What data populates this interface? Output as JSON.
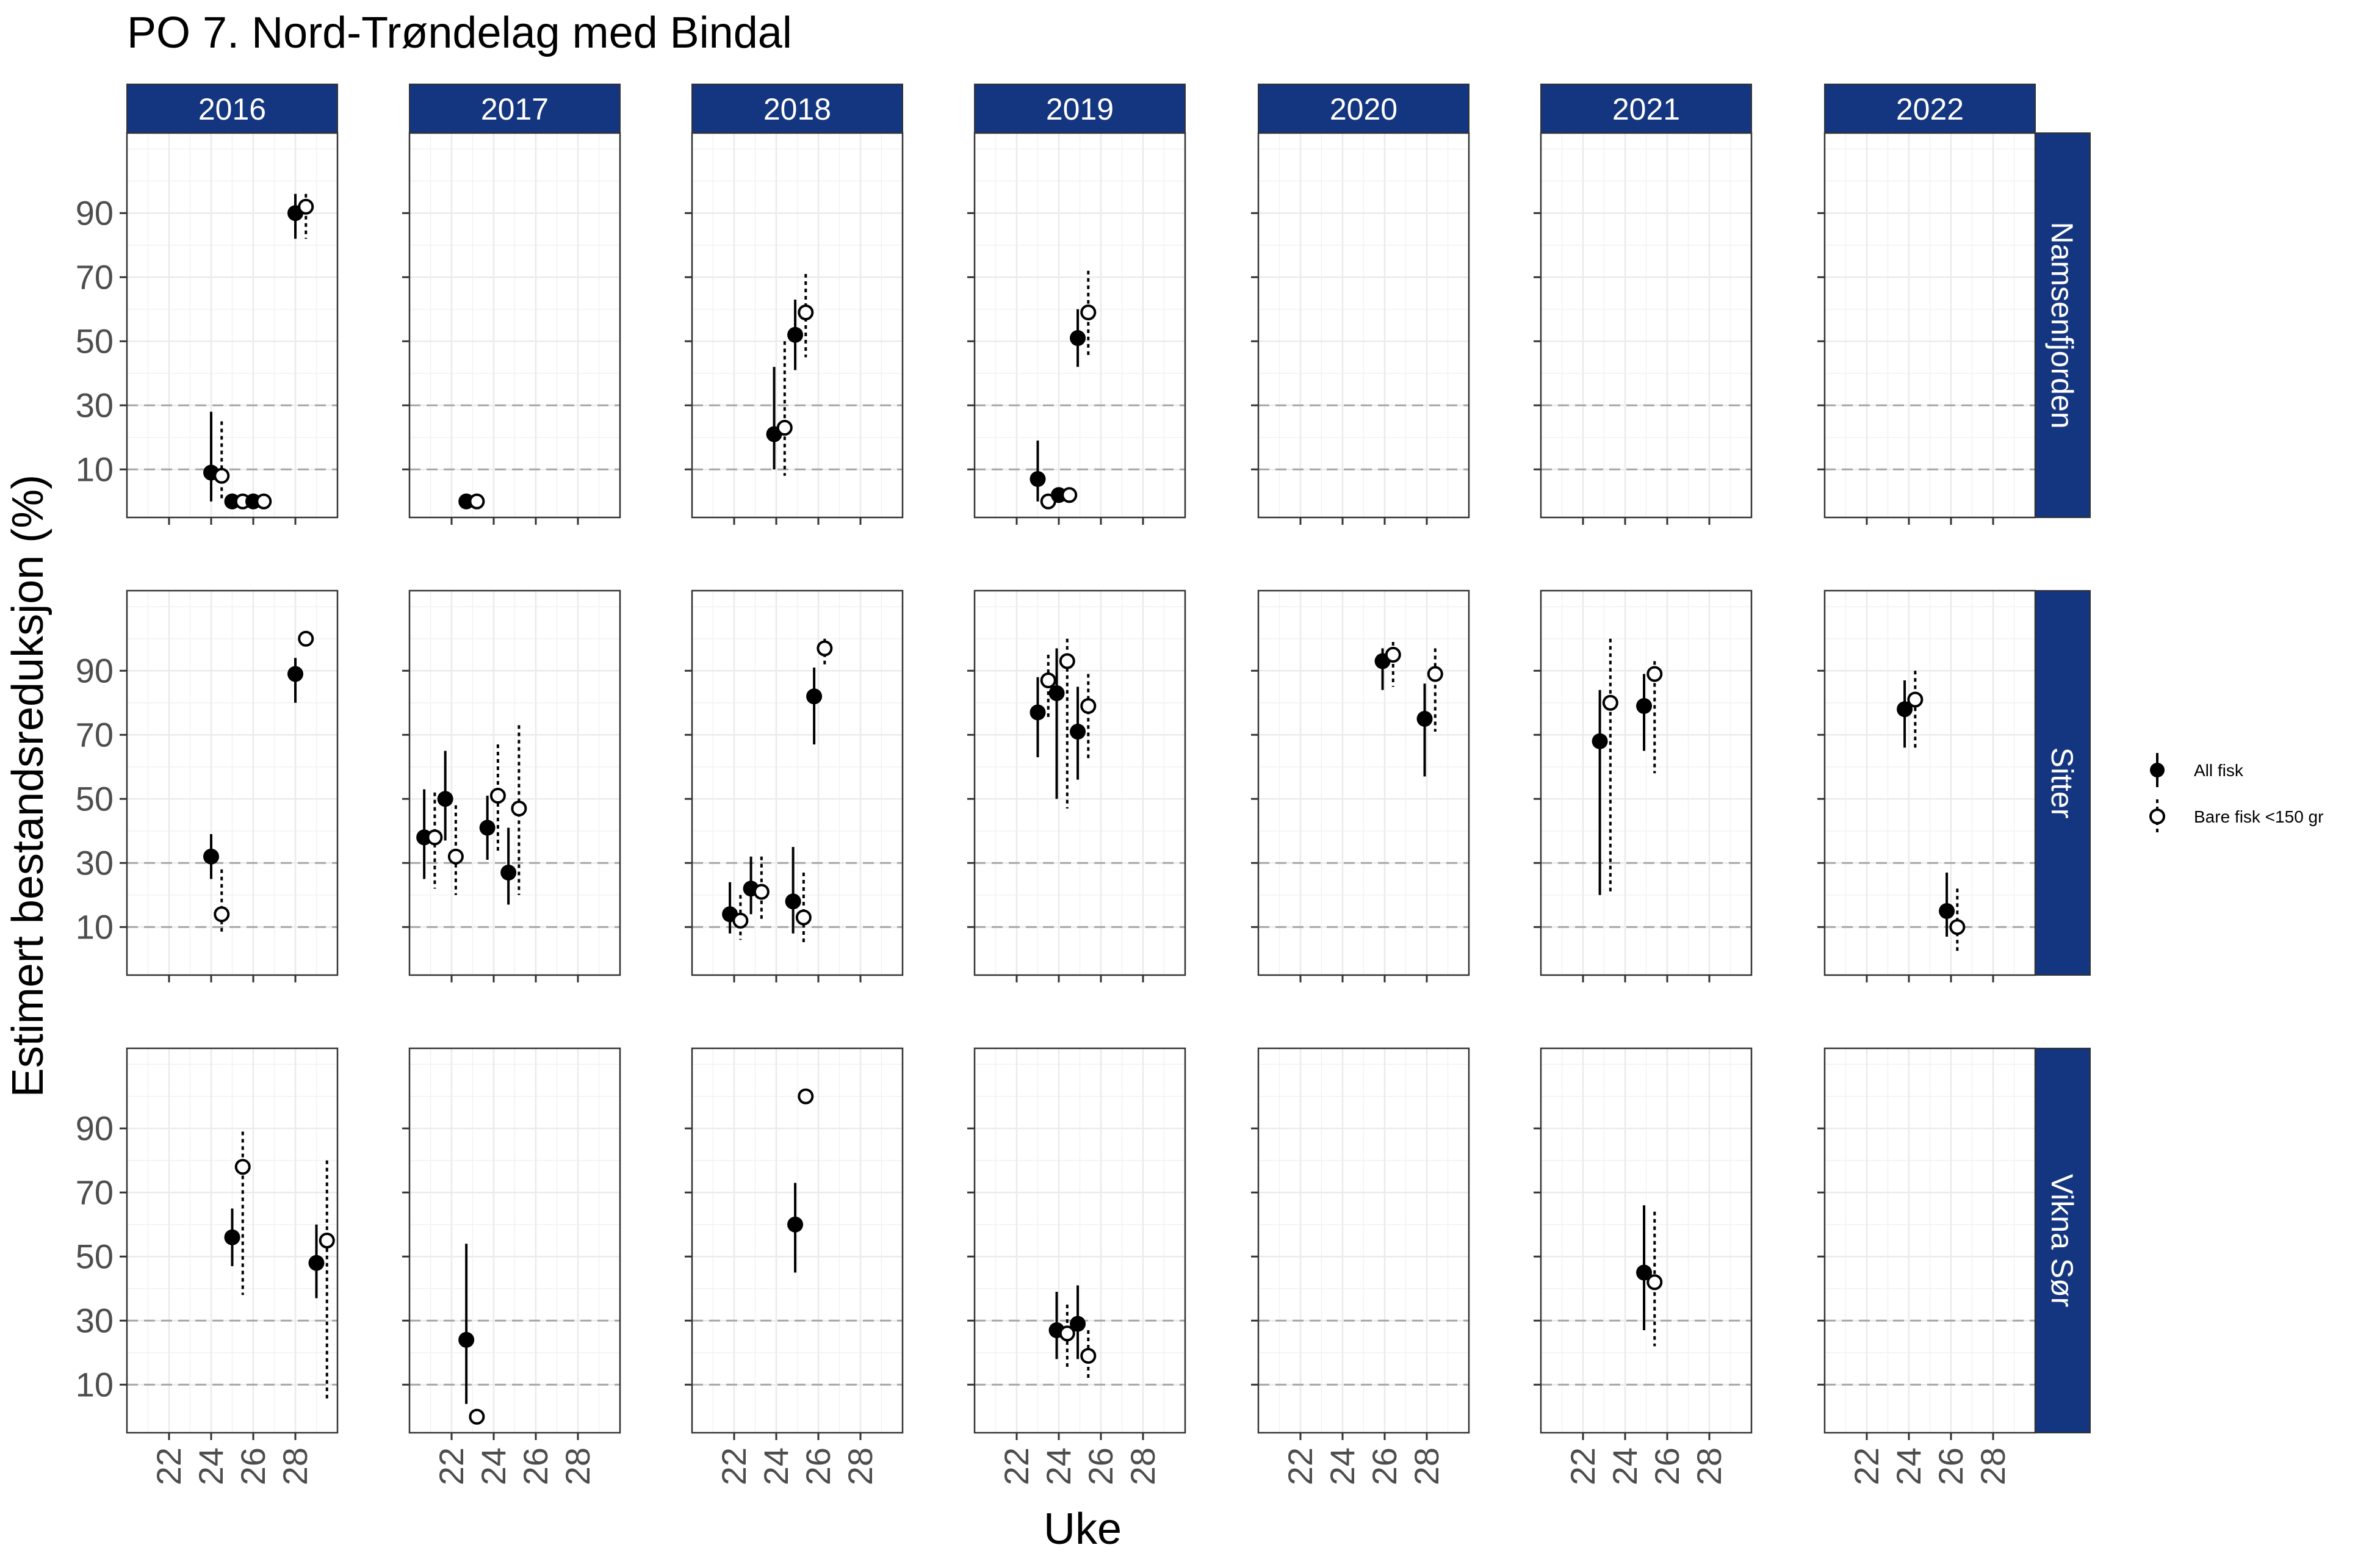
{
  "chart_data": {
    "type": "scatter",
    "title": "PO 7. Nord-Trøndelag med Bindal",
    "xlabel": "Uke",
    "ylabel": "Estimert bestandsreduksjon (%)",
    "xlim": [
      20,
      30
    ],
    "ylim": [
      -5,
      115
    ],
    "x_ticks": [
      22,
      24,
      26,
      28
    ],
    "y_ticks": [
      10,
      30,
      50,
      70,
      90
    ],
    "reference_lines": [
      10,
      30
    ],
    "grid": true,
    "legend_position": "right",
    "column_facets": [
      "2016",
      "2017",
      "2018",
      "2019",
      "2020",
      "2021",
      "2022"
    ],
    "row_facets": [
      "Namsenfjorden",
      "Sitter",
      "Vikna Sør"
    ],
    "strip_color": "#14357f",
    "series": [
      {
        "name": "All fisk",
        "marker": "filled-circle",
        "line": "solid",
        "color": "#000000"
      },
      {
        "name": "Bare fisk <150 gr",
        "marker": "open-circle",
        "line": "dotted",
        "color": "#000000"
      }
    ],
    "points": [
      {
        "year": "2016",
        "area": "Namsenfjorden",
        "series": 0,
        "x": 24,
        "y": 9,
        "lo": 0,
        "hi": 28
      },
      {
        "year": "2016",
        "area": "Namsenfjorden",
        "series": 1,
        "x": 24.5,
        "y": 8,
        "lo": 0,
        "hi": 25
      },
      {
        "year": "2016",
        "area": "Namsenfjorden",
        "series": 0,
        "x": 25,
        "y": 0
      },
      {
        "year": "2016",
        "area": "Namsenfjorden",
        "series": 1,
        "x": 25.5,
        "y": 0
      },
      {
        "year": "2016",
        "area": "Namsenfjorden",
        "series": 0,
        "x": 26,
        "y": 0
      },
      {
        "year": "2016",
        "area": "Namsenfjorden",
        "series": 1,
        "x": 26.5,
        "y": 0
      },
      {
        "year": "2016",
        "area": "Namsenfjorden",
        "series": 0,
        "x": 28,
        "y": 90,
        "lo": 82,
        "hi": 96
      },
      {
        "year": "2016",
        "area": "Namsenfjorden",
        "series": 1,
        "x": 28.5,
        "y": 92,
        "lo": 82,
        "hi": 96
      },
      {
        "year": "2017",
        "area": "Namsenfjorden",
        "series": 0,
        "x": 22.7,
        "y": 0
      },
      {
        "year": "2017",
        "area": "Namsenfjorden",
        "series": 1,
        "x": 23.2,
        "y": 0
      },
      {
        "year": "2018",
        "area": "Namsenfjorden",
        "series": 0,
        "x": 23.9,
        "y": 21,
        "lo": 10,
        "hi": 42
      },
      {
        "year": "2018",
        "area": "Namsenfjorden",
        "series": 1,
        "x": 24.4,
        "y": 23,
        "lo": 8,
        "hi": 50
      },
      {
        "year": "2018",
        "area": "Namsenfjorden",
        "series": 0,
        "x": 24.9,
        "y": 52,
        "lo": 41,
        "hi": 63
      },
      {
        "year": "2018",
        "area": "Namsenfjorden",
        "series": 1,
        "x": 25.4,
        "y": 59,
        "lo": 45,
        "hi": 71
      },
      {
        "year": "2019",
        "area": "Namsenfjorden",
        "series": 0,
        "x": 23,
        "y": 7,
        "lo": 0,
        "hi": 19
      },
      {
        "year": "2019",
        "area": "Namsenfjorden",
        "series": 1,
        "x": 23.5,
        "y": 0
      },
      {
        "year": "2019",
        "area": "Namsenfjorden",
        "series": 0,
        "x": 24,
        "y": 2
      },
      {
        "year": "2019",
        "area": "Namsenfjorden",
        "series": 1,
        "x": 24.5,
        "y": 2
      },
      {
        "year": "2019",
        "area": "Namsenfjorden",
        "series": 0,
        "x": 24.9,
        "y": 51,
        "lo": 42,
        "hi": 60
      },
      {
        "year": "2019",
        "area": "Namsenfjorden",
        "series": 1,
        "x": 25.4,
        "y": 59,
        "lo": 45,
        "hi": 72
      },
      {
        "year": "2016",
        "area": "Sitter",
        "series": 0,
        "x": 24,
        "y": 32,
        "lo": 25,
        "hi": 39
      },
      {
        "year": "2016",
        "area": "Sitter",
        "series": 1,
        "x": 24.5,
        "y": 14,
        "lo": 8,
        "hi": 28
      },
      {
        "year": "2016",
        "area": "Sitter",
        "series": 0,
        "x": 28,
        "y": 89,
        "lo": 80,
        "hi": 94
      },
      {
        "year": "2016",
        "area": "Sitter",
        "series": 1,
        "x": 28.5,
        "y": 100
      },
      {
        "year": "2017",
        "area": "Sitter",
        "series": 0,
        "x": 20.7,
        "y": 38,
        "lo": 25,
        "hi": 53
      },
      {
        "year": "2017",
        "area": "Sitter",
        "series": 1,
        "x": 21.2,
        "y": 38,
        "lo": 22,
        "hi": 52
      },
      {
        "year": "2017",
        "area": "Sitter",
        "series": 0,
        "x": 21.7,
        "y": 50,
        "lo": 37,
        "hi": 65
      },
      {
        "year": "2017",
        "area": "Sitter",
        "series": 1,
        "x": 22.2,
        "y": 32,
        "lo": 20,
        "hi": 48
      },
      {
        "year": "2017",
        "area": "Sitter",
        "series": 0,
        "x": 23.7,
        "y": 41,
        "lo": 31,
        "hi": 51
      },
      {
        "year": "2017",
        "area": "Sitter",
        "series": 1,
        "x": 24.2,
        "y": 51,
        "lo": 33,
        "hi": 67
      },
      {
        "year": "2017",
        "area": "Sitter",
        "series": 0,
        "x": 24.7,
        "y": 27,
        "lo": 17,
        "hi": 41
      },
      {
        "year": "2017",
        "area": "Sitter",
        "series": 1,
        "x": 25.2,
        "y": 47,
        "lo": 20,
        "hi": 73
      },
      {
        "year": "2018",
        "area": "Sitter",
        "series": 0,
        "x": 21.8,
        "y": 14,
        "lo": 8,
        "hi": 24
      },
      {
        "year": "2018",
        "area": "Sitter",
        "series": 1,
        "x": 22.3,
        "y": 12,
        "lo": 6,
        "hi": 20
      },
      {
        "year": "2018",
        "area": "Sitter",
        "series": 0,
        "x": 22.8,
        "y": 22,
        "lo": 14,
        "hi": 32
      },
      {
        "year": "2018",
        "area": "Sitter",
        "series": 1,
        "x": 23.3,
        "y": 21,
        "lo": 12,
        "hi": 32
      },
      {
        "year": "2018",
        "area": "Sitter",
        "series": 0,
        "x": 24.8,
        "y": 18,
        "lo": 8,
        "hi": 35
      },
      {
        "year": "2018",
        "area": "Sitter",
        "series": 1,
        "x": 25.3,
        "y": 13,
        "lo": 5,
        "hi": 27
      },
      {
        "year": "2018",
        "area": "Sitter",
        "series": 0,
        "x": 25.8,
        "y": 82,
        "lo": 67,
        "hi": 91
      },
      {
        "year": "2018",
        "area": "Sitter",
        "series": 1,
        "x": 26.3,
        "y": 97,
        "lo": 92,
        "hi": 100
      },
      {
        "year": "2019",
        "area": "Sitter",
        "series": 0,
        "x": 23,
        "y": 77,
        "lo": 63,
        "hi": 88
      },
      {
        "year": "2019",
        "area": "Sitter",
        "series": 1,
        "x": 23.5,
        "y": 87,
        "lo": 75,
        "hi": 95
      },
      {
        "year": "2019",
        "area": "Sitter",
        "series": 0,
        "x": 23.9,
        "y": 83,
        "lo": 50,
        "hi": 97
      },
      {
        "year": "2019",
        "area": "Sitter",
        "series": 1,
        "x": 24.4,
        "y": 93,
        "lo": 47,
        "hi": 100
      },
      {
        "year": "2019",
        "area": "Sitter",
        "series": 0,
        "x": 24.9,
        "y": 71,
        "lo": 56,
        "hi": 85
      },
      {
        "year": "2019",
        "area": "Sitter",
        "series": 1,
        "x": 25.4,
        "y": 79,
        "lo": 62,
        "hi": 89
      },
      {
        "year": "2020",
        "area": "Sitter",
        "series": 0,
        "x": 25.9,
        "y": 93,
        "lo": 84,
        "hi": 97
      },
      {
        "year": "2020",
        "area": "Sitter",
        "series": 1,
        "x": 26.4,
        "y": 95,
        "lo": 85,
        "hi": 99
      },
      {
        "year": "2020",
        "area": "Sitter",
        "series": 0,
        "x": 27.9,
        "y": 75,
        "lo": 57,
        "hi": 86
      },
      {
        "year": "2020",
        "area": "Sitter",
        "series": 1,
        "x": 28.4,
        "y": 89,
        "lo": 71,
        "hi": 97
      },
      {
        "year": "2021",
        "area": "Sitter",
        "series": 0,
        "x": 22.8,
        "y": 68,
        "lo": 20,
        "hi": 84
      },
      {
        "year": "2021",
        "area": "Sitter",
        "series": 1,
        "x": 23.3,
        "y": 80,
        "lo": 20,
        "hi": 100
      },
      {
        "year": "2021",
        "area": "Sitter",
        "series": 0,
        "x": 24.9,
        "y": 79,
        "lo": 65,
        "hi": 89
      },
      {
        "year": "2021",
        "area": "Sitter",
        "series": 1,
        "x": 25.4,
        "y": 89,
        "lo": 58,
        "hi": 93
      },
      {
        "year": "2022",
        "area": "Sitter",
        "series": 0,
        "x": 23.8,
        "y": 78,
        "lo": 66,
        "hi": 87
      },
      {
        "year": "2022",
        "area": "Sitter",
        "series": 1,
        "x": 24.3,
        "y": 81,
        "lo": 65,
        "hi": 90
      },
      {
        "year": "2022",
        "area": "Sitter",
        "series": 0,
        "x": 25.8,
        "y": 15,
        "lo": 7,
        "hi": 27
      },
      {
        "year": "2022",
        "area": "Sitter",
        "series": 1,
        "x": 26.3,
        "y": 10,
        "lo": 2,
        "hi": 22
      },
      {
        "year": "2016",
        "area": "Vikna Sør",
        "series": 0,
        "x": 25,
        "y": 56,
        "lo": 47,
        "hi": 65
      },
      {
        "year": "2016",
        "area": "Vikna Sør",
        "series": 1,
        "x": 25.5,
        "y": 78,
        "lo": 38,
        "hi": 89
      },
      {
        "year": "2016",
        "area": "Vikna Sør",
        "series": 0,
        "x": 29,
        "y": 48,
        "lo": 37,
        "hi": 60
      },
      {
        "year": "2016",
        "area": "Vikna Sør",
        "series": 1,
        "x": 29.5,
        "y": 55,
        "lo": 5,
        "hi": 80
      },
      {
        "year": "2017",
        "area": "Vikna Sør",
        "series": 0,
        "x": 22.7,
        "y": 24,
        "lo": 4,
        "hi": 54
      },
      {
        "year": "2017",
        "area": "Vikna Sør",
        "series": 1,
        "x": 23.2,
        "y": 0
      },
      {
        "year": "2018",
        "area": "Vikna Sør",
        "series": 0,
        "x": 24.9,
        "y": 60,
        "lo": 45,
        "hi": 73
      },
      {
        "year": "2018",
        "area": "Vikna Sør",
        "series": 1,
        "x": 25.4,
        "y": 100
      },
      {
        "year": "2019",
        "area": "Vikna Sør",
        "series": 0,
        "x": 23.9,
        "y": 27,
        "lo": 18,
        "hi": 39
      },
      {
        "year": "2019",
        "area": "Vikna Sør",
        "series": 1,
        "x": 24.4,
        "y": 26,
        "lo": 15,
        "hi": 35
      },
      {
        "year": "2019",
        "area": "Vikna Sør",
        "series": 0,
        "x": 24.9,
        "y": 29,
        "lo": 18,
        "hi": 41
      },
      {
        "year": "2019",
        "area": "Vikna Sør",
        "series": 1,
        "x": 25.4,
        "y": 19,
        "lo": 12,
        "hi": 27
      },
      {
        "year": "2021",
        "area": "Vikna Sør",
        "series": 0,
        "x": 24.9,
        "y": 45,
        "lo": 27,
        "hi": 66
      },
      {
        "year": "2021",
        "area": "Vikna Sør",
        "series": 1,
        "x": 25.4,
        "y": 42,
        "lo": 22,
        "hi": 64
      }
    ]
  }
}
